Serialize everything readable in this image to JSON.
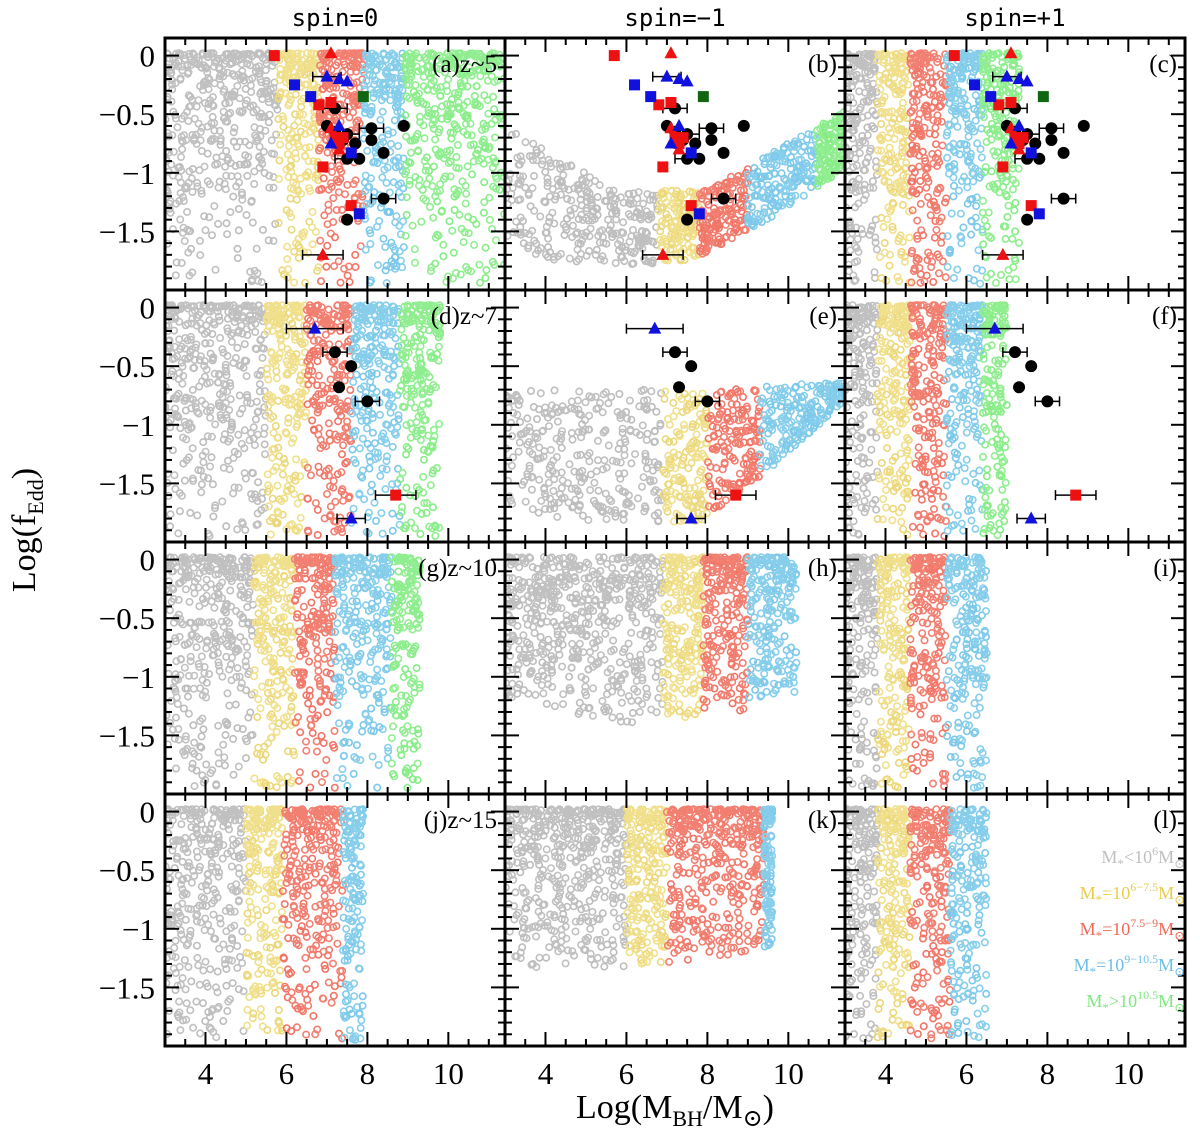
{
  "chart_data": {
    "type": "scatter",
    "layout": "4x3 panel grid",
    "column_titles": [
      "spin=0",
      "spin=−1",
      "spin=+1"
    ],
    "xlabel_prefix": "Log(M",
    "xlabel_sub": "BH",
    "xlabel_suffix": "/M",
    "xlabel_sun": "⊙",
    "xlabel_close": ")",
    "ylabel_prefix": "Log(f",
    "ylabel_sub": "Edd",
    "ylabel_close": ")",
    "xlim": [
      3,
      11.4
    ],
    "ylim": [
      -2.0,
      0.15
    ],
    "xticks": [
      4,
      6,
      8,
      10
    ],
    "yticks": [
      0,
      -0.5,
      -1,
      -1.5
    ],
    "ytick_labels": [
      "0",
      "−0.5",
      "−1",
      "−1.5"
    ],
    "panel_labels": [
      "(a)z~5",
      "(b)",
      "(c)",
      "(d)z~7",
      "(e)",
      "(f)",
      "(g)z~10",
      "(h)",
      "(i)",
      "(j)z~15",
      "(k)",
      "(l)"
    ],
    "colors": {
      "grey": "#c0c0c0",
      "yellow": "#f0e08c",
      "salmon": "#f28072",
      "blue": "#87ceeb",
      "green": "#90ee90",
      "obs_black": "#000000",
      "obs_red": "#ee1111",
      "obs_blue": "#1111dd",
      "obs_green": "#116611"
    },
    "legend": {
      "location": "panel (l), right",
      "entries": [
        {
          "color": "#c0c0c0",
          "prefix": "M",
          "sub": "*",
          "mid": "<10",
          "sup": "6",
          "suffix": "M",
          "sun": "⊙"
        },
        {
          "color": "#e8cc4c",
          "prefix": "M",
          "sub": "*",
          "mid": "=10",
          "sup": "6−7.5",
          "suffix": "M",
          "sun": "⊙"
        },
        {
          "color": "#f26a5a",
          "prefix": "M",
          "sub": "*",
          "mid": "=10",
          "sup": "7.5−9",
          "suffix": "M",
          "sun": "⊙"
        },
        {
          "color": "#6cbee6",
          "prefix": "M",
          "sub": "*",
          "mid": "=10",
          "sup": "9−10.5",
          "suffix": "M",
          "sun": "⊙"
        },
        {
          "color": "#7ee87e",
          "prefix": "M",
          "sub": "*",
          "mid": ">10",
          "sup": "10.5",
          "suffix": "M",
          "sun": "⊙"
        }
      ]
    },
    "band_edges": {
      "spin0_z5": [
        [
          3.0,
          5.8
        ],
        [
          5.8,
          6.8
        ],
        [
          6.8,
          7.9
        ],
        [
          7.9,
          8.9
        ],
        [
          8.9,
          11.4
        ]
      ],
      "spin0_z7": [
        [
          3.0,
          5.5
        ],
        [
          5.5,
          6.5
        ],
        [
          6.5,
          7.6
        ],
        [
          7.6,
          8.8
        ],
        [
          8.8,
          9.8
        ]
      ],
      "spin0_z10": [
        [
          3.0,
          5.2
        ],
        [
          5.2,
          6.2
        ],
        [
          6.2,
          7.2
        ],
        [
          7.2,
          8.6
        ],
        [
          8.6,
          9.3
        ]
      ],
      "spin0_z15": [
        [
          3.0,
          5.0
        ],
        [
          5.0,
          5.9
        ],
        [
          5.9,
          7.4
        ],
        [
          7.4,
          7.9
        ]
      ],
      "spinp1_z5": [
        [
          3.0,
          3.8
        ],
        [
          3.8,
          4.6
        ],
        [
          4.6,
          5.5
        ],
        [
          5.5,
          6.4
        ],
        [
          6.4,
          7.3
        ]
      ],
      "spinp1_z7": [
        [
          3.0,
          3.8
        ],
        [
          3.8,
          4.6
        ],
        [
          4.6,
          5.5
        ],
        [
          5.5,
          6.4
        ],
        [
          6.4,
          7.0
        ]
      ],
      "spinp1_z10": [
        [
          3.0,
          3.8
        ],
        [
          3.8,
          4.6
        ],
        [
          4.6,
          5.5
        ],
        [
          5.5,
          6.5
        ]
      ],
      "spinp1_z15": [
        [
          3.0,
          3.8
        ],
        [
          3.8,
          4.6
        ],
        [
          4.6,
          5.6
        ],
        [
          5.6,
          6.5
        ]
      ],
      "spinm1_z5": [
        [
          3.0,
          6.8
        ],
        [
          6.8,
          7.8
        ],
        [
          7.8,
          9.0
        ],
        [
          9.0,
          10.7
        ],
        [
          10.7,
          11.4
        ]
      ],
      "spinm1_z7": [
        [
          3.0,
          6.9
        ],
        [
          6.9,
          8.0
        ],
        [
          8.0,
          9.3
        ],
        [
          9.3,
          11.4
        ]
      ],
      "spinm1_z10": [
        [
          3.0,
          6.9
        ],
        [
          6.9,
          7.9
        ],
        [
          7.9,
          9.0
        ],
        [
          9.0,
          10.2
        ]
      ],
      "spinm1_z15": [
        [
          3.0,
          6.0
        ],
        [
          6.0,
          7.0
        ],
        [
          7.0,
          9.4
        ],
        [
          9.4,
          9.6
        ]
      ]
    },
    "observations_z5": {
      "black_circles": [
        {
          "x": 7.2,
          "y": -0.45
        },
        {
          "x": 7.0,
          "y": -0.6
        },
        {
          "x": 7.2,
          "y": -0.65
        },
        {
          "x": 7.5,
          "y": -0.67
        },
        {
          "x": 7.4,
          "y": -0.72
        },
        {
          "x": 7.7,
          "y": -0.75
        },
        {
          "x": 8.1,
          "y": -0.62
        },
        {
          "x": 8.1,
          "y": -0.72
        },
        {
          "x": 8.9,
          "y": -0.6
        },
        {
          "x": 7.5,
          "y": -0.88
        },
        {
          "x": 7.8,
          "y": -0.88
        },
        {
          "x": 8.4,
          "y": -0.83
        },
        {
          "x": 8.4,
          "y": -1.22
        },
        {
          "x": 7.5,
          "y": -1.4
        }
      ],
      "red_squares": [
        {
          "x": 5.7,
          "y": 0.0
        },
        {
          "x": 6.8,
          "y": -0.42
        },
        {
          "x": 7.1,
          "y": -0.4
        },
        {
          "x": 7.2,
          "y": -0.7
        },
        {
          "x": 7.4,
          "y": -0.7
        },
        {
          "x": 6.9,
          "y": -0.95
        },
        {
          "x": 7.6,
          "y": -1.28
        },
        {
          "x": 7.3,
          "y": -0.75
        }
      ],
      "blue_squares": [
        {
          "x": 6.2,
          "y": -0.25
        },
        {
          "x": 6.6,
          "y": -0.35
        },
        {
          "x": 7.6,
          "y": -0.83
        },
        {
          "x": 7.8,
          "y": -1.35
        }
      ],
      "red_triangles": [
        {
          "x": 7.1,
          "y": 0.02
        },
        {
          "x": 7.1,
          "y": -0.62
        },
        {
          "x": 7.3,
          "y": -0.8
        },
        {
          "x": 6.9,
          "y": -1.7
        }
      ],
      "blue_triangles": [
        {
          "x": 7.0,
          "y": -0.18
        },
        {
          "x": 7.3,
          "y": -0.2
        },
        {
          "x": 7.5,
          "y": -0.22
        },
        {
          "x": 7.3,
          "y": -0.6
        },
        {
          "x": 7.1,
          "y": -0.75
        }
      ],
      "green_squares": [
        {
          "x": 7.9,
          "y": -0.35
        }
      ]
    },
    "observations_z7": {
      "black_circles": [
        {
          "x": 7.2,
          "y": -0.38
        },
        {
          "x": 7.6,
          "y": -0.5
        },
        {
          "x": 7.3,
          "y": -0.68
        },
        {
          "x": 8.0,
          "y": -0.8
        }
      ],
      "blue_triangles": [
        {
          "x": 6.7,
          "y": -0.18
        },
        {
          "x": 7.6,
          "y": -1.8
        }
      ],
      "red_squares": [
        {
          "x": 8.7,
          "y": -1.6
        }
      ]
    }
  }
}
